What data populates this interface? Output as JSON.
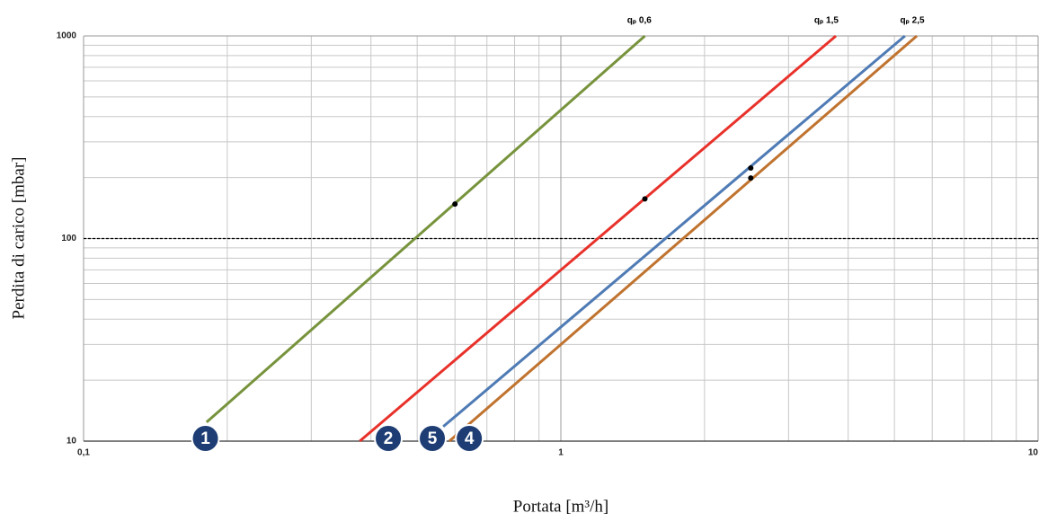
{
  "chart_data": {
    "type": "line",
    "xlabel": "Portata [m³/h]",
    "ylabel": "Perdita di carico [mbar]",
    "xscale": "log",
    "yscale": "log",
    "grid": true,
    "xlim": [
      0.1,
      10
    ],
    "ylim": [
      10,
      1000
    ],
    "xticks": [
      {
        "value": 0.1,
        "label": "0,1"
      },
      1,
      10
    ],
    "yticks": [
      10,
      100,
      1000
    ],
    "reference_line": 100,
    "series": [
      {
        "color": "#77933c",
        "x": [
          0.181,
          1.5
        ],
        "values": [
          12.4,
          1000
        ],
        "points": {
          "x": [
            0.6
          ],
          "values": [
            148
          ]
        }
      },
      {
        "color": "#e8312a",
        "x": [
          0.379,
          3.77
        ],
        "values": [
          10,
          1000
        ],
        "points": {
          "x": [
            1.5
          ],
          "values": [
            157
          ]
        }
      },
      {
        "color": "#4f7bb5",
        "x": [
          0.567,
          5.26
        ],
        "values": [
          11.8,
          1000
        ],
        "points": {
          "x": [
            2.5
          ],
          "values": [
            223
          ]
        }
      },
      {
        "color": "#c0732f",
        "x": [
          0.584,
          5.57
        ],
        "values": [
          10,
          1000
        ],
        "points": {
          "x": [
            2.5
          ],
          "values": [
            199
          ]
        }
      }
    ],
    "top_labels": [
      {
        "text": "qₚ 0,6",
        "x": 1.46
      },
      {
        "text": "qₚ 1,5",
        "x": 3.6
      },
      {
        "text": "qₚ 2,5",
        "x": 5.45
      }
    ],
    "markers": [
      {
        "text": "1",
        "x": 0.18
      },
      {
        "text": "2",
        "x": 0.435
      },
      {
        "text": "5",
        "x": 0.538
      },
      {
        "text": "4",
        "x": 0.643
      }
    ]
  }
}
